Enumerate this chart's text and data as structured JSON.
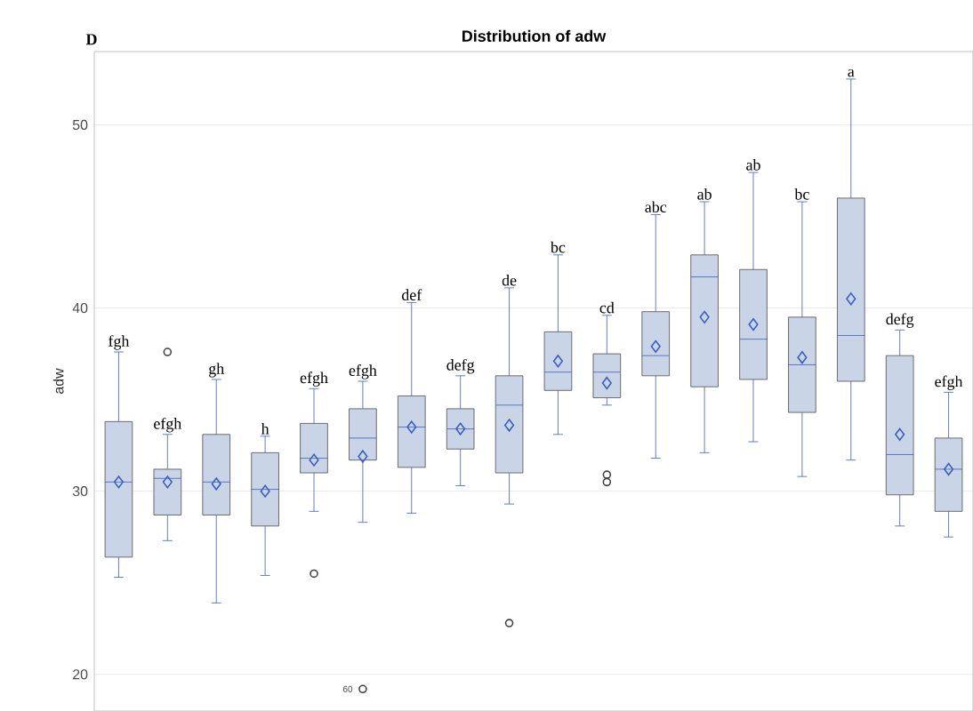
{
  "chart_data": {
    "type": "box",
    "title": "Distribution of adw",
    "ylabel": "adw",
    "categories": [
      null,
      null,
      null,
      null,
      null,
      null,
      null,
      null,
      null,
      null,
      null,
      null,
      null,
      null,
      null,
      null,
      null,
      null
    ],
    "color": "#c9d5e6",
    "boxes": [
      {
        "low": 25.3,
        "q1": 26.4,
        "median": 30.5,
        "q3": 33.8,
        "high": 37.6,
        "mean": 30.5
      },
      {
        "low": 27.3,
        "q1": 28.7,
        "median": 30.7,
        "q3": 31.2,
        "high": 33.1,
        "mean": 30.5,
        "outliers": [
          37.6
        ]
      },
      {
        "low": 23.9,
        "q1": 28.7,
        "median": 30.5,
        "q3": 33.1,
        "high": 36.1,
        "mean": 30.4
      },
      {
        "low": 25.4,
        "q1": 28.1,
        "median": 30.1,
        "q3": 32.1,
        "high": 33.0,
        "mean": 30.0
      },
      {
        "low": 28.9,
        "q1": 31.0,
        "median": 31.8,
        "q3": 33.7,
        "high": 35.6,
        "mean": 31.7,
        "outliers": [
          25.5
        ]
      },
      {
        "low": 28.3,
        "q1": 31.7,
        "median": 32.9,
        "q3": 34.5,
        "high": 36.0,
        "mean": 31.9,
        "outliers": [
          19.2
        ]
      },
      {
        "low": 28.8,
        "q1": 31.3,
        "median": 33.5,
        "q3": 35.2,
        "high": 40.3,
        "mean": 33.5
      },
      {
        "low": 30.3,
        "q1": 32.3,
        "median": 33.4,
        "q3": 34.5,
        "high": 36.3,
        "mean": 33.4
      },
      {
        "low": 29.3,
        "q1": 31.0,
        "median": 34.7,
        "q3": 36.3,
        "high": 41.1,
        "mean": 33.6,
        "outliers": [
          22.8
        ]
      },
      {
        "low": 33.1,
        "q1": 35.5,
        "median": 36.5,
        "q3": 38.7,
        "high": 42.9,
        "mean": 37.1
      },
      {
        "low": 34.7,
        "q1": 35.1,
        "median": 36.5,
        "q3": 37.5,
        "high": 39.6,
        "mean": 35.9,
        "outliers": [
          30.9,
          30.5
        ]
      },
      {
        "low": 31.8,
        "q1": 36.3,
        "median": 37.4,
        "q3": 39.8,
        "high": 45.1,
        "mean": 37.9
      },
      {
        "low": 32.1,
        "q1": 35.7,
        "median": 41.7,
        "q3": 42.9,
        "high": 45.8,
        "mean": 39.5
      },
      {
        "low": 32.7,
        "q1": 36.1,
        "median": 38.3,
        "q3": 42.1,
        "high": 47.4,
        "mean": 39.1
      },
      {
        "low": 30.8,
        "q1": 34.3,
        "median": 36.9,
        "q3": 39.5,
        "high": 45.8,
        "mean": 37.3
      },
      {
        "low": 31.7,
        "q1": 36.0,
        "median": 38.5,
        "q3": 46.0,
        "high": 52.5,
        "mean": 40.5
      },
      {
        "low": 28.1,
        "q1": 29.8,
        "median": 32.0,
        "q3": 37.4,
        "high": 38.8,
        "mean": 33.1
      },
      {
        "low": 27.5,
        "q1": 28.9,
        "median": 31.2,
        "q3": 32.9,
        "high": 35.4,
        "mean": 31.2
      }
    ],
    "ylim": [
      18,
      54
    ],
    "yticks": [
      20,
      30,
      40,
      50
    ],
    "grid": "y",
    "tick_labels": "y",
    "annotations": [
      "D",
      "fgh",
      "efgh",
      "gh",
      "h",
      "efgh",
      "efgh",
      "def",
      "defg",
      "de",
      "bc",
      "cd",
      "abc",
      "ab",
      "ab",
      "bc",
      "a",
      "defg",
      "efgh",
      "60"
    ]
  }
}
